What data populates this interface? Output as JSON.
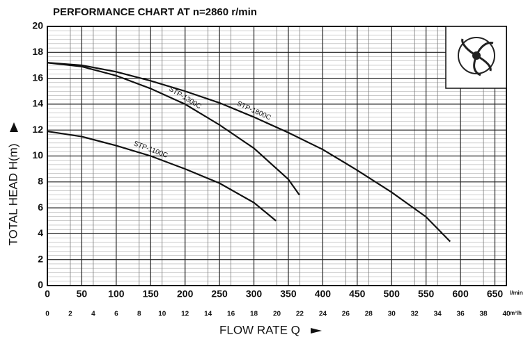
{
  "chart_data": {
    "type": "line",
    "title": "PERFORMANCE CHART AT n=2860 r/min",
    "ylabel": "TOTAL HEAD H(m)",
    "xlabel": "FLOW RATE Q",
    "x_unit": "l/min",
    "x2_unit": "m³/h",
    "xlim": [
      0,
      666.7
    ],
    "xticks": [
      0,
      50,
      100,
      150,
      200,
      250,
      300,
      350,
      400,
      450,
      500,
      550,
      600,
      650
    ],
    "x2lim": [
      0,
      40
    ],
    "x2ticks": [
      0,
      2,
      4,
      6,
      8,
      10,
      12,
      14,
      16,
      18,
      20,
      22,
      24,
      26,
      28,
      30,
      32,
      34,
      36,
      38,
      40
    ],
    "ylim": [
      0,
      20
    ],
    "yticks": [
      0,
      2,
      4,
      6,
      8,
      10,
      12,
      14,
      16,
      18,
      20
    ],
    "grid": true,
    "series": [
      {
        "name": "STP-1800C",
        "color": "#111111",
        "x": [
          0,
          50,
          100,
          150,
          200,
          250,
          300,
          350,
          400,
          450,
          500,
          550,
          585
        ],
        "values": [
          17.2,
          17.0,
          16.5,
          15.8,
          15.0,
          14.1,
          13.0,
          11.8,
          10.5,
          8.9,
          7.2,
          5.3,
          3.4
        ]
      },
      {
        "name": "STP-1300C",
        "color": "#111111",
        "x": [
          0,
          50,
          100,
          150,
          200,
          250,
          300,
          350,
          366
        ],
        "values": [
          17.2,
          16.9,
          16.2,
          15.2,
          14.0,
          12.4,
          10.6,
          8.2,
          7.0
        ]
      },
      {
        "name": "STP-1100C",
        "color": "#111111",
        "x": [
          0,
          50,
          100,
          150,
          200,
          250,
          300,
          332
        ],
        "values": [
          11.9,
          11.5,
          10.8,
          10.0,
          9.0,
          7.9,
          6.4,
          5.0
        ]
      }
    ]
  }
}
